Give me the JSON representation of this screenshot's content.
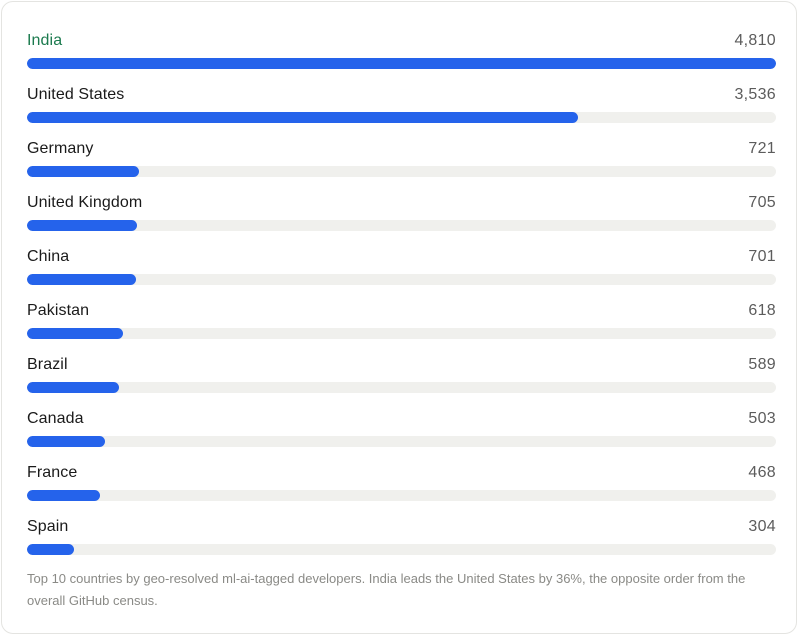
{
  "chart_data": {
    "type": "bar",
    "orientation": "horizontal",
    "categories": [
      "India",
      "United States",
      "Germany",
      "United Kingdom",
      "China",
      "Pakistan",
      "Brazil",
      "Canada",
      "France",
      "Spain"
    ],
    "values": [
      4810,
      3536,
      721,
      705,
      701,
      618,
      589,
      503,
      468,
      304
    ],
    "value_labels": [
      "4,810",
      "3,536",
      "721",
      "705",
      "701",
      "618",
      "589",
      "503",
      "468",
      "304"
    ],
    "xlim": [
      0,
      4810
    ],
    "grid": false,
    "legend": "none",
    "highlight_category": "India",
    "colors": {
      "bar": "#2563eb",
      "track": "#f0f0ed",
      "highlight_label": "#1b7a4e"
    }
  },
  "caption": "Top 10 countries by geo-resolved ml-ai-tagged developers. India leads the United States by 36%, the opposite order from the overall GitHub census."
}
